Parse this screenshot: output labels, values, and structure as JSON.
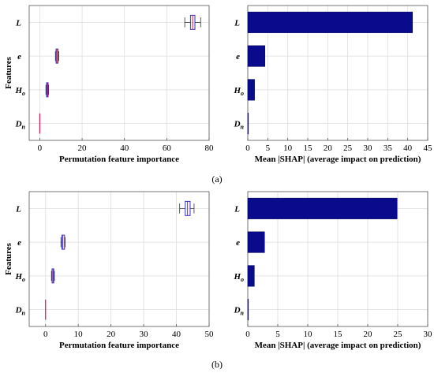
{
  "chart_data": [
    {
      "type": "boxplot",
      "panel": "(a)",
      "xlabel": "Permutation feature importance",
      "ylabel": "Features",
      "xlim": [
        -5,
        80
      ],
      "xticks": [
        0,
        20,
        40,
        60,
        80
      ],
      "categories": [
        "L",
        "e",
        "Ho",
        "Dn"
      ],
      "boxes": [
        {
          "feature": "L",
          "min": 68.5,
          "q1": 71.2,
          "median": 72.2,
          "q3": 73.3,
          "max": 76.0
        },
        {
          "feature": "e",
          "min": 7.4,
          "q1": 7.7,
          "median": 8.1,
          "q3": 8.6,
          "max": 9.0
        },
        {
          "feature": "Ho",
          "min": 2.9,
          "q1": 3.2,
          "median": 3.6,
          "q3": 3.9,
          "max": 4.2
        },
        {
          "feature": "Dn",
          "min": 0.0,
          "q1": 0.0,
          "median": 0.0,
          "q3": 0.0,
          "max": 0.0
        }
      ],
      "grid": true
    },
    {
      "type": "bar",
      "orientation": "horizontal",
      "panel": "(a)",
      "xlabel": "Mean |SHAP| (average impact on prediction)",
      "xlim": [
        0,
        45
      ],
      "xticks": [
        0,
        5,
        10,
        15,
        20,
        25,
        30,
        35,
        40,
        45
      ],
      "categories": [
        "L",
        "e",
        "Ho",
        "Dn"
      ],
      "values": [
        41.2,
        4.3,
        1.7,
        0.15
      ],
      "bar_color": "#0a0a8c",
      "grid": true
    },
    {
      "type": "boxplot",
      "panel": "(b)",
      "xlabel": "Permutation feature importance",
      "ylabel": "Features",
      "xlim": [
        -5,
        50
      ],
      "xticks": [
        0,
        10,
        20,
        30,
        40,
        50
      ],
      "categories": [
        "L",
        "e",
        "Ho",
        "Dn"
      ],
      "boxes": [
        {
          "feature": "L",
          "min": 41.0,
          "q1": 42.7,
          "median": 43.4,
          "q3": 44.2,
          "max": 45.4
        },
        {
          "feature": "e",
          "min": 4.7,
          "q1": 5.0,
          "median": 5.3,
          "q3": 5.8,
          "max": 6.0
        },
        {
          "feature": "Ho",
          "min": 1.8,
          "q1": 2.0,
          "median": 2.3,
          "q3": 2.5,
          "max": 2.7
        },
        {
          "feature": "Dn",
          "min": 0.0,
          "q1": 0.0,
          "median": 0.0,
          "q3": 0.0,
          "max": 0.0
        }
      ],
      "grid": true
    },
    {
      "type": "bar",
      "orientation": "horizontal",
      "panel": "(b)",
      "xlabel": "Mean |SHAP| (average impact on prediction)",
      "xlim": [
        0,
        30
      ],
      "xticks": [
        0,
        5,
        10,
        15,
        20,
        25,
        30
      ],
      "categories": [
        "L",
        "e",
        "Ho",
        "Dn"
      ],
      "values": [
        24.9,
        2.8,
        1.1,
        0.1
      ],
      "bar_color": "#0a0a8c",
      "grid": true
    }
  ],
  "labels": {
    "L": "L",
    "e": "e",
    "H": "H",
    "o": "o",
    "D": "D",
    "n": "n"
  },
  "colors": {
    "box_edge": "#3232c8",
    "median": "#d2145a",
    "whisker": "#333333",
    "bar": "#0a0a8c"
  }
}
